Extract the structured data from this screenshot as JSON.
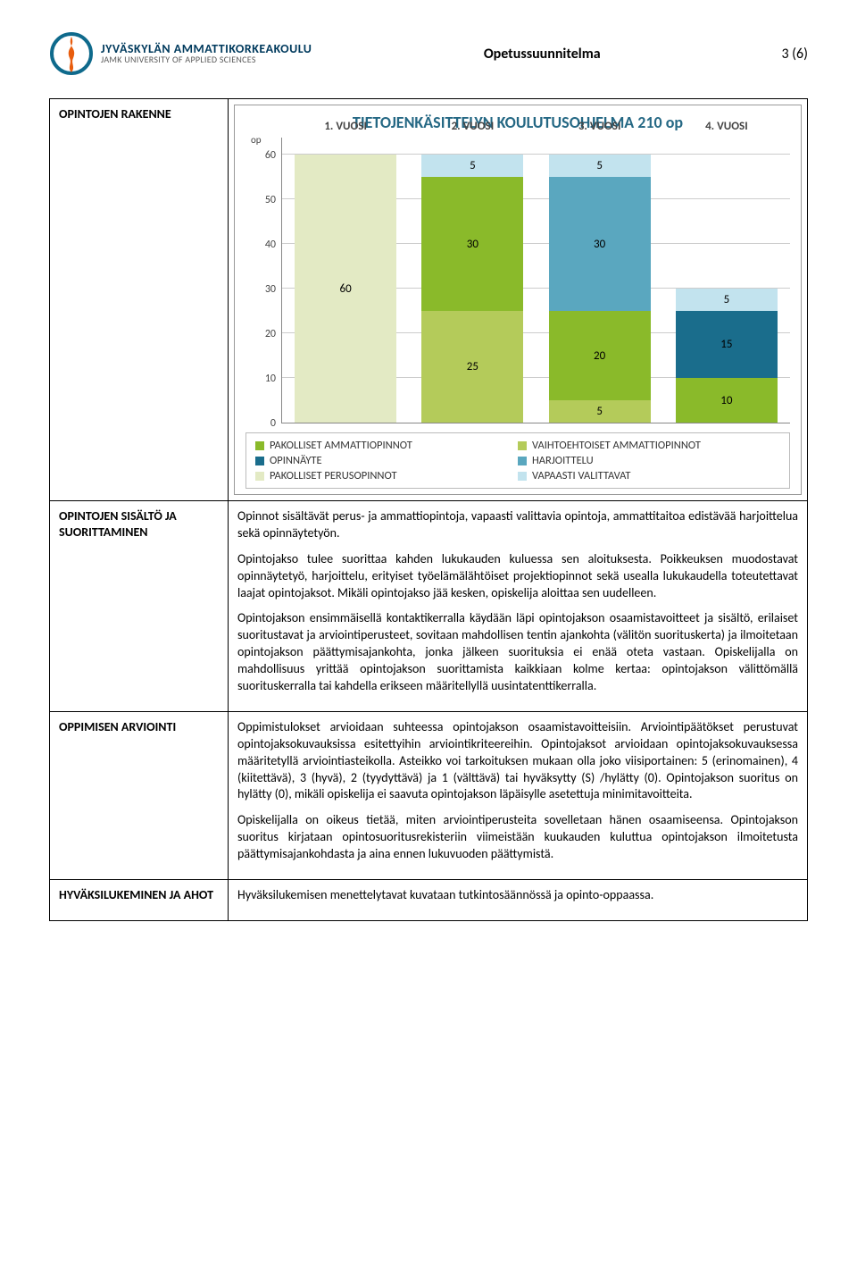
{
  "header": {
    "logo": {
      "line1": "JYVÄSKYLÄN AMMATTIKORKEAKOULU",
      "line2": "JAMK UNIVERSITY OF APPLIED SCIENCES"
    },
    "title": "Opetussuunnitelma",
    "page": "3 (6)"
  },
  "chart": {
    "type": "stacked-bar",
    "title": "TIETOJENKÄSITTELYN KOULUTUSOHJELMA 210 op",
    "y_unit": "op",
    "y_max": 60,
    "y_min": 0,
    "y_ticks": [
      0,
      10,
      20,
      30,
      40,
      50,
      60
    ],
    "grid_color": "#cccccc",
    "axis_color": "#888888",
    "title_color": "#256884",
    "background_color": "#ffffff",
    "categories": [
      "1. VUOSI",
      "2. VUOSI",
      "3. VUOSI",
      "4. VUOSI"
    ],
    "series": [
      {
        "key": "pakolliset_ammatti",
        "name": "PAKOLLISET AMMATTIOPINNOT",
        "color": "#8aba2a"
      },
      {
        "key": "vaihtoehtoiset_ammatti",
        "name": "VAIHTOEHTOISET AMMATTIOPINNOT",
        "color": "#b4cb5a"
      },
      {
        "key": "opinnayte",
        "name": "OPINNÄYTE",
        "color": "#1a6d8c"
      },
      {
        "key": "harjoittelu",
        "name": "HARJOITTELU",
        "color": "#5aa7bf"
      },
      {
        "key": "pakolliset_perus",
        "name": "PAKOLLISET PERUSOPINNOT",
        "color": "#e3eac4"
      },
      {
        "key": "vapaasti",
        "name": "VAPAASTI VALITTAVAT",
        "color": "#c2e3ee"
      }
    ],
    "bars": [
      {
        "category": "1. VUOSI",
        "segments": [
          {
            "series": "pakolliset_perus",
            "value": 60,
            "label": "60"
          }
        ]
      },
      {
        "category": "2. VUOSI",
        "segments": [
          {
            "series": "vaihtoehtoiset_ammatti",
            "value": 25,
            "label": "25"
          },
          {
            "series": "pakolliset_ammatti",
            "value": 30,
            "label": "30"
          },
          {
            "series": "vapaasti",
            "value": 5,
            "label": "5"
          }
        ]
      },
      {
        "category": "3. VUOSI",
        "segments": [
          {
            "series": "vaihtoehtoiset_ammatti",
            "value": 5,
            "label": "5"
          },
          {
            "series": "pakolliset_ammatti",
            "value": 20,
            "label": "20"
          },
          {
            "series": "harjoittelu",
            "value": 30,
            "label": "30"
          },
          {
            "series": "vapaasti",
            "value": 5,
            "label": "5"
          }
        ]
      },
      {
        "category": "4. VUOSI",
        "segments": [
          {
            "series": "pakolliset_ammatti",
            "value": 10,
            "label": "10"
          },
          {
            "series": "opinnayte",
            "value": 15,
            "label": "15"
          },
          {
            "series": "vapaasti",
            "value": 5,
            "label": "5"
          }
        ]
      }
    ]
  },
  "sections": {
    "rakenne": {
      "label": "OPINTOJEN RAKENNE"
    },
    "sisalto": {
      "label": "OPINTOJEN SISÄLTÖ JA SUORITTAMINEN",
      "p1": "Opinnot sisältävät perus- ja ammattiopintoja, vapaasti valittavia opintoja, ammattitaitoa edistävää harjoittelua sekä opinnäytetyön.",
      "p2": "Opintojakso tulee suorittaa kahden lukukauden kuluessa sen aloituksesta. Poikkeuksen muodostavat opinnäytetyö, harjoittelu, erityiset työelämälähtöiset projektiopinnot sekä usealla lukukaudella toteutettavat laajat opintojaksot. Mikäli opintojakso jää kesken, opiskelija aloittaa sen uudelleen.",
      "p3": "Opintojakson ensimmäisellä kontaktikerralla käydään läpi opintojakson osaamistavoitteet ja sisältö, erilaiset suoritustavat ja arviointiperusteet, sovitaan mahdollisen tentin ajankohta (välitön suorituskerta) ja ilmoitetaan opintojakson päättymisajankohta, jonka jälkeen suorituksia ei enää oteta vastaan. Opiskelijalla on mahdollisuus yrittää opintojakson suorittamista kaikkiaan kolme kertaa: opintojakson välittömällä suorituskerralla tai kahdella erikseen määritellyllä uusintatenttikerralla."
    },
    "arviointi": {
      "label": "OPPIMISEN ARVIOINTI",
      "p1": "Oppimistulokset arvioidaan suhteessa opintojakson osaamistavoitteisiin. Arviointipäätökset perustuvat opintojaksokuvauksissa esitettyihin arviointikriteereihin. Opintojaksot arvioidaan opintojaksokuvauksessa määritetyllä arviointiasteikolla. Asteikko voi tarkoituksen mukaan olla joko viisiportainen: 5 (erinomainen), 4 (kiitettävä), 3 (hyvä), 2 (tyydyttävä) ja 1 (välttävä) tai hyväksytty (S) /hylätty (0). Opintojakson suoritus on hylätty (0), mikäli opiskelija ei saavuta opintojakson läpäisylle asetettuja minimitavoitteita.",
      "p2": "Opiskelijalla on oikeus tietää, miten arviointiperusteita sovelletaan hänen osaamiseensa. Opintojakson suoritus kirjataan opintosuoritusrekisteriin viimeistään kuukauden kuluttua opintojakson ilmoitetusta päättymisajankohdasta ja aina ennen lukuvuoden päättymistä."
    },
    "ahot": {
      "label": "HYVÄKSILUKEMINEN JA AHOT",
      "p1": "Hyväksilukemisen menettelytavat kuvataan tutkintosäännössä ja opinto-oppaassa."
    }
  }
}
